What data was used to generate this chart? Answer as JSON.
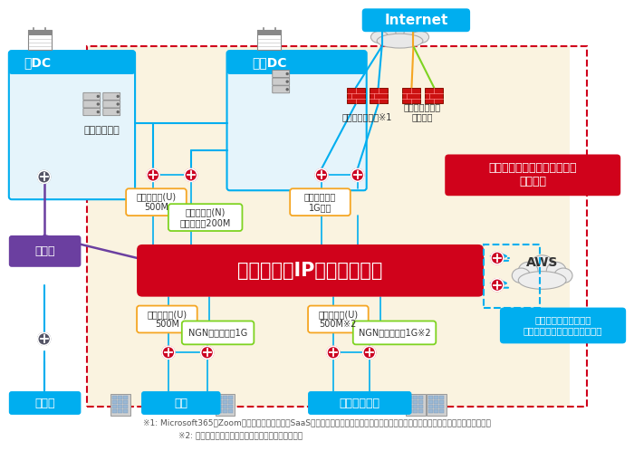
{
  "background_color": "#ffffff",
  "footnote1": "※1: Microsoft365やZoomなど、負荷が増大するSaaSとの通信を識別し、オフロードさせることで快適なインターネットアクセスを実現",
  "footnote2": "※2: グループ会社の回線種別・帯域・構成は一例です",
  "labels": {
    "internet": "Internet",
    "someDC": "某DC",
    "mitakaDC": "三鷹DC",
    "backbone": "基幹システム",
    "offload": "オフロード環境※1",
    "inet_infra": "インターネット\n接続基盤",
    "alteria": "アルテリア・ネットワークス\n提供範囲",
    "closed_ip": "クローズドIPネットワーク",
    "other_net": "他社網",
    "eigyo": "営業所",
    "honsha": "本社",
    "group": "グループ会社",
    "aws": "AWS",
    "cloud_svc": "クラウド接続サービス\n「セキュアクラウドアクセス」",
    "hikari_u_500_1": "光アクセス(U)\n500M",
    "hikari_n_200": "光アクセス(N)\nファミリー200M",
    "kounaiaccess": "構内アクセス\n1G専有",
    "hikari_u_500_2": "光アクセス(U)\n500M",
    "ngn_1g_1": "NGNファミリー1G",
    "hikari_u_500_3": "光アクセス(U)\n500M※2",
    "ngn_1g_2": "NGNファミリー1G※2"
  },
  "colors": {
    "blue": "#00aeef",
    "purple": "#6b3fa0",
    "red": "#d0021b",
    "orange": "#f5a623",
    "green": "#7ed321",
    "beige_bg": "#faf3e0",
    "white": "#ffffff",
    "dark_text": "#333333",
    "footnote": "#555555",
    "cloud_gray": "#d8d8d8",
    "router_red": "#cc0022",
    "router_gray": "#555566",
    "fw_red": "#cc1111",
    "server_gray": "#aaaaaa",
    "building_gray": "#bbbbbb"
  }
}
